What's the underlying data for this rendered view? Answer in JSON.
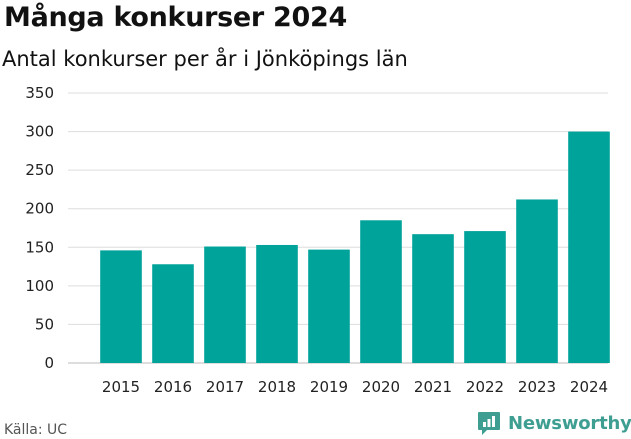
{
  "header": {
    "title": "Många konkurser 2024",
    "subtitle": "Antal konkurser per år i Jönköpings län"
  },
  "footer": {
    "source": "Källa: UC",
    "brand": "Newsworthy"
  },
  "colors": {
    "bar": "#00a39a",
    "grid": "#dddddd",
    "brand": "#3e9e92"
  },
  "icons": {
    "brand_logo": "newsworthy-logo-icon"
  },
  "chart_data": {
    "type": "bar",
    "categories": [
      "2015",
      "2016",
      "2017",
      "2018",
      "2019",
      "2020",
      "2021",
      "2022",
      "2023",
      "2024"
    ],
    "values": [
      146,
      128,
      151,
      153,
      147,
      185,
      167,
      171,
      212,
      300
    ],
    "yticks": [
      0,
      50,
      100,
      150,
      200,
      250,
      300,
      350
    ],
    "ylim": [
      0,
      350
    ],
    "grid": true,
    "legend": false
  }
}
